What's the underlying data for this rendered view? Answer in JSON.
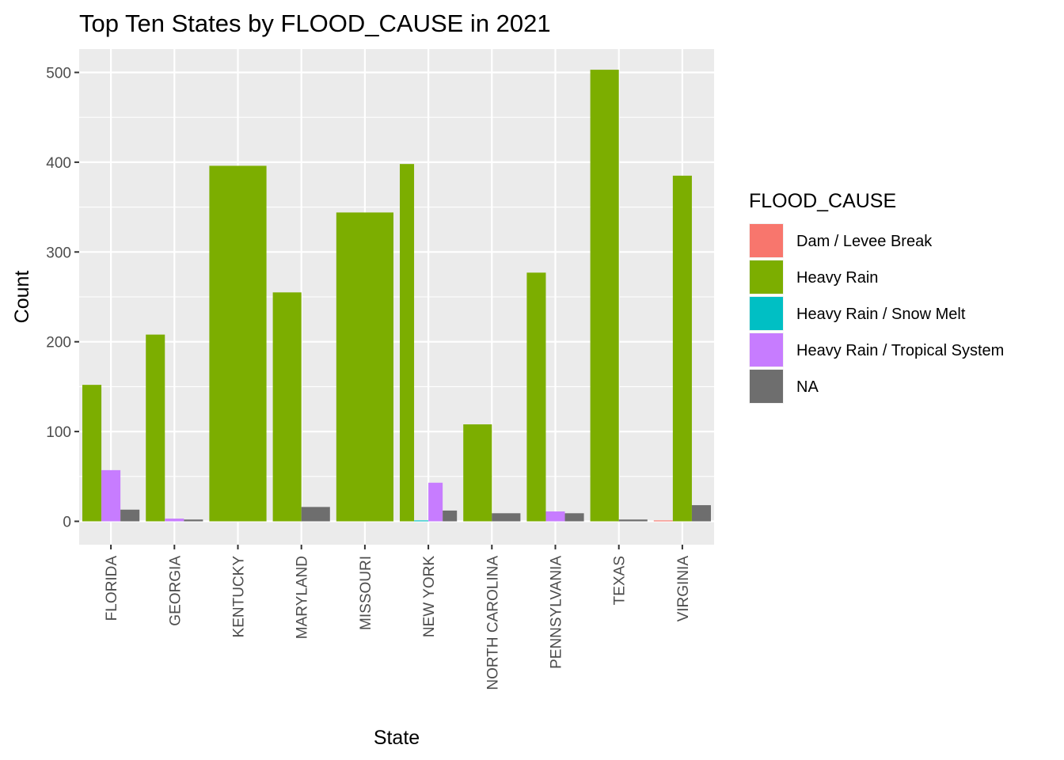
{
  "chart_data": {
    "type": "bar",
    "title": "Top Ten States by FLOOD_CAUSE in 2021",
    "xlabel": "State",
    "ylabel": "Count",
    "ylim": [
      -26,
      526
    ],
    "yticks": [
      0,
      100,
      200,
      300,
      400,
      500
    ],
    "grid": true,
    "legend_title": "FLOOD_CAUSE",
    "legend_position": "right",
    "categories": [
      "FLORIDA",
      "GEORGIA",
      "KENTUCKY",
      "MARYLAND",
      "MISSOURI",
      "NEW YORK",
      "NORTH CAROLINA",
      "PENNSYLVANIA",
      "TEXAS",
      "VIRGINIA"
    ],
    "series": [
      {
        "name": "Dam / Levee Break",
        "color": "#F8766D",
        "values": [
          null,
          null,
          null,
          null,
          null,
          null,
          null,
          null,
          null,
          1
        ]
      },
      {
        "name": "Heavy Rain",
        "color": "#7CAE00",
        "values": [
          152,
          208,
          396,
          255,
          344,
          398,
          108,
          277,
          503,
          385
        ]
      },
      {
        "name": "Heavy Rain / Snow Melt",
        "color": "#00BFC4",
        "values": [
          null,
          null,
          null,
          null,
          null,
          1,
          null,
          null,
          null,
          null
        ]
      },
      {
        "name": "Heavy Rain / Tropical System",
        "color": "#C77CFF",
        "values": [
          57,
          3,
          null,
          null,
          null,
          43,
          null,
          11,
          null,
          null
        ]
      },
      {
        "name": "NA",
        "color": "#6E6E6E",
        "values": [
          13,
          2,
          null,
          16,
          null,
          12,
          9,
          9,
          2,
          18
        ]
      }
    ]
  }
}
